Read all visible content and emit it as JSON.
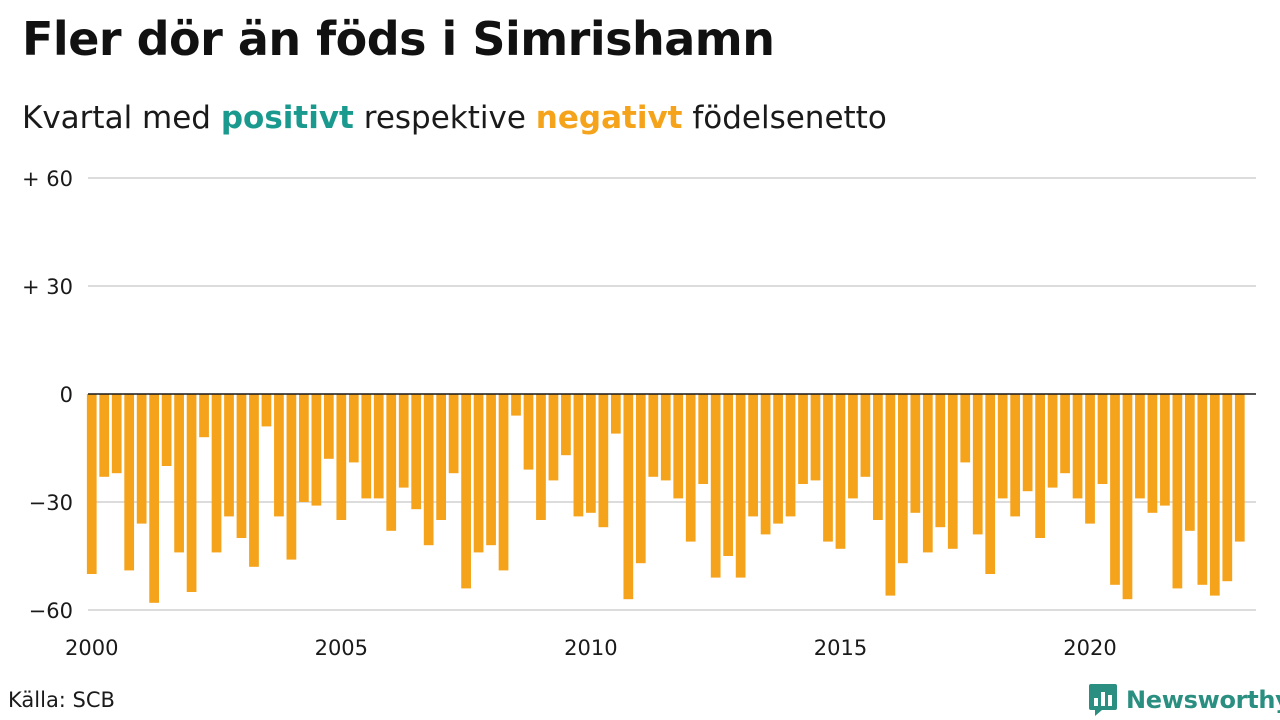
{
  "title": "Fler dör än föds i Simrishamn",
  "subtitle": {
    "prefix": "Kvartal med",
    "positive": "positivt",
    "middle": "respektive",
    "negative": "negativt",
    "suffix": "födelsenetto"
  },
  "source": "Källa: SCB",
  "brand": "Newsworthy",
  "colors": {
    "positive": "#1a9a8e",
    "negative": "#f5a31a",
    "brand": "#2a8f80"
  },
  "chart_data": {
    "type": "bar",
    "title": "Fler dör än föds i Simrishamn",
    "subtitle": "Kvartal med positivt respektive negativt födelsenetto",
    "xlabel": "",
    "ylabel": "",
    "ylim": [
      -60,
      60
    ],
    "y_ticks": [
      {
        "value": 60,
        "label": "+ 60"
      },
      {
        "value": 30,
        "label": "+ 30"
      },
      {
        "value": 0,
        "label": "0"
      },
      {
        "value": -30,
        "label": "−30"
      },
      {
        "value": -60,
        "label": "−60"
      }
    ],
    "x_ticks": [
      {
        "value": 2000,
        "label": "2000"
      },
      {
        "value": 2005,
        "label": "2005"
      },
      {
        "value": 2010,
        "label": "2010"
      },
      {
        "value": 2015,
        "label": "2015"
      },
      {
        "value": 2020,
        "label": "2020"
      }
    ],
    "start_year": 2000,
    "grid": true,
    "series": [
      {
        "values": [
          -50,
          -23,
          -22,
          -49,
          -36,
          -58,
          -20,
          -44,
          -55,
          -12,
          -44,
          -34,
          -40,
          -48,
          -9,
          -34,
          -46,
          -30,
          -31,
          -18,
          -35,
          -19,
          -29,
          -29,
          -38,
          -26,
          -32,
          -42,
          -35,
          -22,
          -54,
          -44,
          -42,
          -49,
          -6,
          -21,
          -35,
          -24,
          -17,
          -34,
          -33,
          -37,
          -11,
          -57,
          -47,
          -23,
          -24,
          -29,
          -41,
          -25,
          -51,
          -45,
          -51,
          -34,
          -39,
          -36,
          -34,
          -25,
          -24,
          -41,
          -43,
          -29,
          -23,
          -35,
          -56,
          -47,
          -33,
          -44,
          -37,
          -43,
          -19,
          -39,
          -50,
          -29,
          -34,
          -27,
          -40,
          -26,
          -22,
          -29,
          -36,
          -25,
          -53,
          -57,
          -29,
          -33,
          -31,
          -54,
          -38,
          -53,
          -56,
          -52,
          -41
        ]
      }
    ]
  }
}
